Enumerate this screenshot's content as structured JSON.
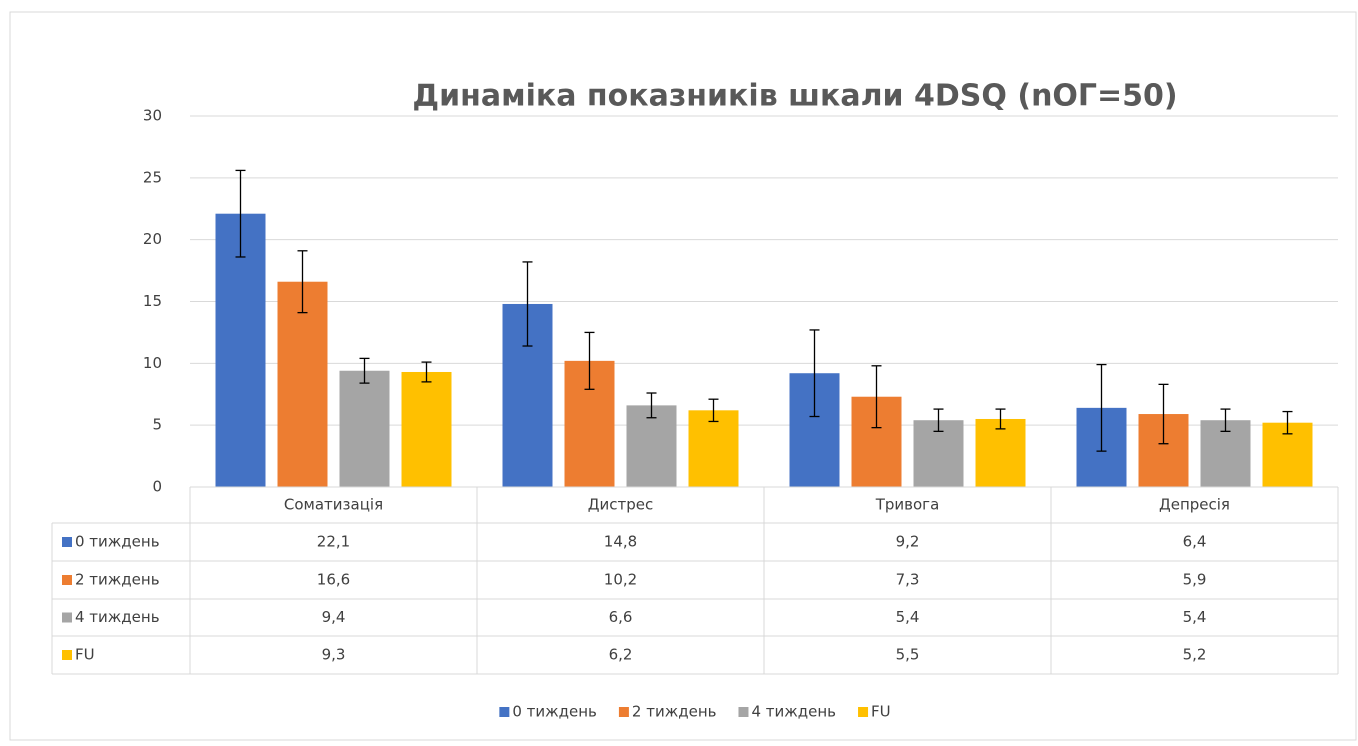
{
  "chart_data": {
    "type": "bar",
    "title": "Динаміка показників шкали 4DSQ (nОГ=50)",
    "categories": [
      "Соматизація",
      "Дистрес",
      "Тривога",
      "Депресія"
    ],
    "series": [
      {
        "name": "0 тиждень",
        "color": "#4472c4",
        "values": [
          22.1,
          14.8,
          9.2,
          6.4
        ],
        "value_labels": [
          "22,1",
          "14,8",
          "9,2",
          "6,4"
        ],
        "errors": [
          3.5,
          3.4,
          3.5,
          3.5
        ]
      },
      {
        "name": "2 тиждень",
        "color": "#ed7d31",
        "values": [
          16.6,
          10.2,
          7.3,
          5.9
        ],
        "value_labels": [
          "16,6",
          "10,2",
          "7,3",
          "5,9"
        ],
        "errors": [
          2.5,
          2.3,
          2.5,
          2.4
        ]
      },
      {
        "name": "4 тиждень",
        "color": "#a5a5a5",
        "values": [
          9.4,
          6.6,
          5.4,
          5.4
        ],
        "value_labels": [
          "9,4",
          "6,6",
          "5,4",
          "5,4"
        ],
        "errors": [
          1.0,
          1.0,
          0.9,
          0.9
        ]
      },
      {
        "name": "FU",
        "color": "#ffc000",
        "values": [
          9.3,
          6.2,
          5.5,
          5.2
        ],
        "value_labels": [
          "9,3",
          "6,2",
          "5,5",
          "5,2"
        ],
        "errors": [
          0.8,
          0.9,
          0.8,
          0.9
        ]
      }
    ],
    "ylim": [
      0,
      30
    ],
    "yticks": [
      0,
      5,
      10,
      15,
      20,
      25,
      30
    ],
    "grid": true,
    "legend": "bottom"
  }
}
